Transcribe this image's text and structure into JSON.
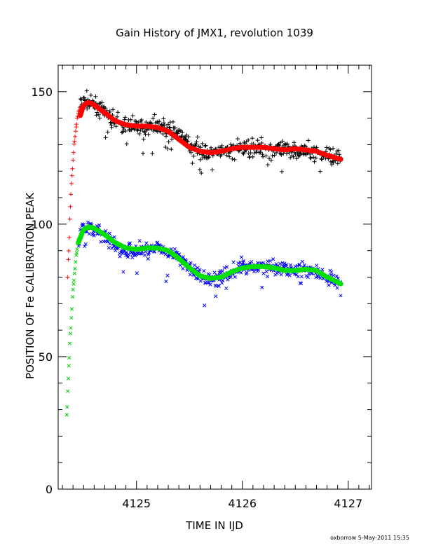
{
  "chart_data": {
    "type": "scatter",
    "title": "Gain History of JMX1, revolution 1039",
    "xlabel": "TIME IN IJD",
    "ylabel": "POSITION OF Fe CALIBRATION PEAK",
    "xlim": [
      4124.26,
      4127.22
    ],
    "ylim": [
      0,
      160
    ],
    "x_ticks": [
      4125,
      4126,
      4127
    ],
    "y_ticks": [
      0,
      50,
      100,
      150
    ],
    "grid": false,
    "footer": "oxborrow  5-May-2011 15:35",
    "series": [
      {
        "marker": "plus",
        "role": "upper peak raw",
        "color": "#000000",
        "ramp_color": "#ff0000",
        "ramp_end_x": 4124.47,
        "x": [
          4124.35,
          4124.38,
          4124.41,
          4124.44,
          4124.47,
          4124.5,
          4124.55,
          4124.6,
          4124.7,
          4124.8,
          4124.9,
          4125.0,
          4125.1,
          4125.2,
          4125.3,
          4125.4,
          4125.5,
          4125.6,
          4125.7,
          4125.8,
          4125.9,
          4126.0,
          4126.1,
          4126.2,
          4126.3,
          4126.4,
          4126.5,
          4126.6,
          4126.7,
          4126.8,
          4126.93
        ],
        "y": [
          80,
          112,
          130,
          140,
          145,
          147,
          146,
          145,
          142,
          139,
          137,
          137,
          137,
          137,
          136,
          134,
          130,
          128,
          127,
          127,
          128,
          129,
          129,
          129,
          128,
          128,
          128,
          128,
          127,
          126,
          125
        ],
        "scatter": 5
      },
      {
        "marker": "cross",
        "role": "lower peak raw",
        "color": "#0000ff",
        "ramp_color": "#00cc00",
        "ramp_end_x": 4124.45,
        "x": [
          4124.34,
          4124.37,
          4124.4,
          4124.43,
          4124.45,
          4124.48,
          4124.55,
          4124.6,
          4124.7,
          4124.8,
          4124.9,
          4125.0,
          4125.1,
          4125.2,
          4125.3,
          4125.4,
          4125.5,
          4125.6,
          4125.7,
          4125.8,
          4125.9,
          4126.0,
          4126.1,
          4126.2,
          4126.3,
          4126.4,
          4126.5,
          4126.6,
          4126.7,
          4126.8,
          4126.93
        ],
        "y": [
          27,
          55,
          75,
          88,
          94,
          98,
          99,
          98,
          95,
          92,
          90,
          90,
          91,
          91,
          90,
          87,
          84,
          80,
          79,
          80,
          82,
          84,
          84,
          84,
          83,
          83,
          83,
          83,
          82,
          80,
          78
        ],
        "scatter": 4.5
      },
      {
        "marker": "line",
        "role": "upper peak smoothed",
        "color": "#ff0000",
        "x": [
          4124.47,
          4124.5,
          4124.55,
          4124.6,
          4124.7,
          4124.8,
          4124.9,
          4125.0,
          4125.1,
          4125.2,
          4125.3,
          4125.4,
          4125.5,
          4125.6,
          4125.7,
          4125.8,
          4125.9,
          4126.0,
          4126.1,
          4126.2,
          4126.3,
          4126.4,
          4126.5,
          4126.6,
          4126.7,
          4126.8,
          4126.93
        ],
        "y": [
          141,
          145,
          146,
          145,
          142,
          139,
          137.5,
          137,
          137,
          136.5,
          135,
          132,
          129,
          127.5,
          127,
          127.5,
          128.5,
          129,
          129,
          129,
          128.5,
          128,
          128.5,
          128,
          127.5,
          126,
          124.5
        ]
      },
      {
        "marker": "line",
        "role": "lower peak smoothed",
        "color": "#00e000",
        "x": [
          4124.45,
          4124.5,
          4124.55,
          4124.6,
          4124.7,
          4124.8,
          4124.9,
          4125.0,
          4125.1,
          4125.2,
          4125.3,
          4125.4,
          4125.5,
          4125.6,
          4125.7,
          4125.8,
          4125.9,
          4126.0,
          4126.1,
          4126.2,
          4126.3,
          4126.4,
          4126.5,
          4126.6,
          4126.7,
          4126.8,
          4126.93
        ],
        "y": [
          93,
          98,
          99,
          98.5,
          96,
          93,
          91,
          90.5,
          91,
          91,
          90,
          87,
          83.5,
          80.5,
          79.5,
          80,
          82,
          83.5,
          84,
          84,
          83.5,
          82.5,
          82.5,
          83,
          82.5,
          80,
          77.5
        ]
      }
    ]
  }
}
